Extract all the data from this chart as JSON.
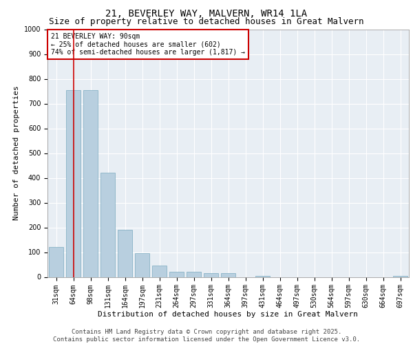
{
  "title_line1": "21, BEVERLEY WAY, MALVERN, WR14 1LA",
  "title_line2": "Size of property relative to detached houses in Great Malvern",
  "xlabel": "Distribution of detached houses by size in Great Malvern",
  "ylabel": "Number of detached properties",
  "categories": [
    "31sqm",
    "64sqm",
    "98sqm",
    "131sqm",
    "164sqm",
    "197sqm",
    "231sqm",
    "264sqm",
    "297sqm",
    "331sqm",
    "364sqm",
    "397sqm",
    "431sqm",
    "464sqm",
    "497sqm",
    "530sqm",
    "564sqm",
    "597sqm",
    "630sqm",
    "664sqm",
    "697sqm"
  ],
  "values": [
    120,
    755,
    755,
    420,
    190,
    97,
    47,
    20,
    20,
    15,
    15,
    0,
    5,
    0,
    0,
    0,
    0,
    0,
    0,
    0,
    5
  ],
  "bar_color": "#b8cfdf",
  "bar_edge_color": "#7aaabf",
  "vline_color": "#cc0000",
  "vline_x_index": 1.5,
  "ylim": [
    0,
    1000
  ],
  "yticks": [
    0,
    100,
    200,
    300,
    400,
    500,
    600,
    700,
    800,
    900,
    1000
  ],
  "annotation_text": "21 BEVERLEY WAY: 90sqm\n← 25% of detached houses are smaller (602)\n74% of semi-detached houses are larger (1,817) →",
  "annotation_box_color": "#cc0000",
  "footer_line1": "Contains HM Land Registry data © Crown copyright and database right 2025.",
  "footer_line2": "Contains public sector information licensed under the Open Government Licence v3.0.",
  "bg_color": "#e8eef4",
  "grid_color": "#ffffff",
  "title_fontsize": 10,
  "subtitle_fontsize": 9,
  "axis_label_fontsize": 8,
  "tick_fontsize": 7,
  "annotation_fontsize": 7,
  "footer_fontsize": 6.5
}
